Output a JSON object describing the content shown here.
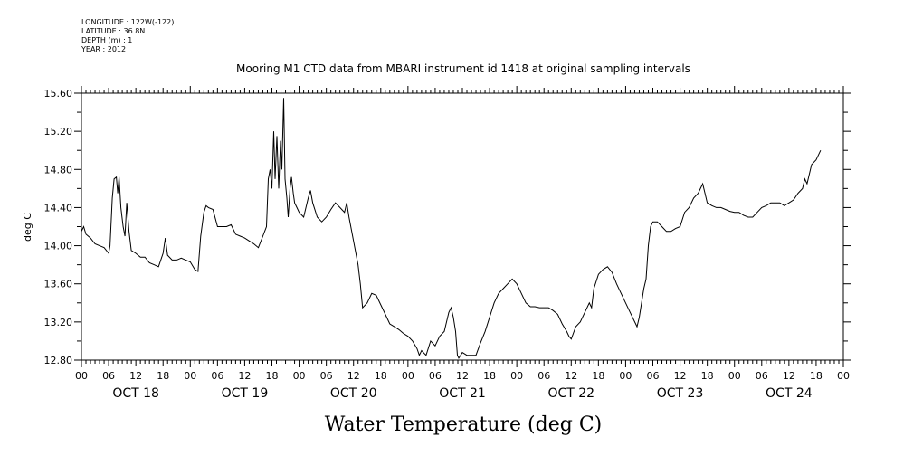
{
  "metadata": [
    "LONGITUDE : 122W(-122)",
    "LATITUDE : 36.8N",
    "DEPTH (m) : 1",
    "YEAR : 2012"
  ],
  "chart_data": {
    "type": "line",
    "title": "Mooring M1 CTD data from MBARI instrument id 1418 at original sampling intervals",
    "xlabel": "Water Temperature (deg C)",
    "ylabel": "deg C",
    "ylim": [
      12.8,
      15.6
    ],
    "yticks": [
      "12.80",
      "13.20",
      "13.60",
      "14.00",
      "14.40",
      "14.80",
      "15.20",
      "15.60"
    ],
    "xlim_hours": [
      0,
      168
    ],
    "x_unit": "hours since Oct 18 2012 00:00",
    "hour_tick_labels": [
      "00",
      "06",
      "12",
      "18",
      "00",
      "06",
      "12",
      "18",
      "00",
      "06",
      "12",
      "18",
      "00",
      "06",
      "12",
      "18",
      "00",
      "06",
      "12",
      "18",
      "00",
      "06",
      "12",
      "18",
      "00",
      "06",
      "12",
      "18",
      "00"
    ],
    "day_labels": [
      "OCT 18",
      "OCT 19",
      "OCT 20",
      "OCT 21",
      "OCT 22",
      "OCT 23",
      "OCT 24"
    ],
    "series": [
      {
        "points": [
          [
            0,
            14.15
          ],
          [
            0.5,
            14.2
          ],
          [
            1,
            14.12
          ],
          [
            2,
            14.08
          ],
          [
            3,
            14.02
          ],
          [
            4,
            14.0
          ],
          [
            5,
            13.98
          ],
          [
            6,
            13.92
          ],
          [
            6.3,
            14.0
          ],
          [
            6.8,
            14.5
          ],
          [
            7.2,
            14.7
          ],
          [
            7.7,
            14.72
          ],
          [
            8,
            14.55
          ],
          [
            8.3,
            14.72
          ],
          [
            8.7,
            14.4
          ],
          [
            9.2,
            14.2
          ],
          [
            9.6,
            14.1
          ],
          [
            10,
            14.45
          ],
          [
            10.5,
            14.15
          ],
          [
            11,
            13.95
          ],
          [
            12,
            13.92
          ],
          [
            13,
            13.88
          ],
          [
            14,
            13.88
          ],
          [
            15,
            13.82
          ],
          [
            16,
            13.8
          ],
          [
            17,
            13.78
          ],
          [
            18,
            13.92
          ],
          [
            18.5,
            14.08
          ],
          [
            19,
            13.9
          ],
          [
            20,
            13.85
          ],
          [
            21,
            13.85
          ],
          [
            22,
            13.87
          ],
          [
            23,
            13.85
          ],
          [
            24,
            13.83
          ],
          [
            25,
            13.75
          ],
          [
            25.7,
            13.73
          ],
          [
            26.3,
            14.1
          ],
          [
            27,
            14.35
          ],
          [
            27.5,
            14.42
          ],
          [
            28,
            14.4
          ],
          [
            29,
            14.38
          ],
          [
            30,
            14.2
          ],
          [
            31,
            14.2
          ],
          [
            32,
            14.2
          ],
          [
            33,
            14.22
          ],
          [
            34,
            14.12
          ],
          [
            35,
            14.1
          ],
          [
            36,
            14.08
          ],
          [
            37,
            14.05
          ],
          [
            38,
            14.02
          ],
          [
            39,
            13.98
          ],
          [
            40,
            14.1
          ],
          [
            40.8,
            14.2
          ],
          [
            41.2,
            14.7
          ],
          [
            41.6,
            14.8
          ],
          [
            42,
            14.6
          ],
          [
            42.4,
            15.2
          ],
          [
            42.7,
            14.7
          ],
          [
            43.1,
            15.15
          ],
          [
            43.5,
            14.6
          ],
          [
            43.9,
            15.1
          ],
          [
            44.2,
            14.8
          ],
          [
            44.6,
            15.55
          ],
          [
            44.9,
            14.7
          ],
          [
            45.3,
            14.5
          ],
          [
            45.6,
            14.3
          ],
          [
            46,
            14.6
          ],
          [
            46.3,
            14.72
          ],
          [
            46.7,
            14.55
          ],
          [
            47,
            14.45
          ],
          [
            47.5,
            14.4
          ],
          [
            48,
            14.35
          ],
          [
            49,
            14.3
          ],
          [
            50,
            14.5
          ],
          [
            50.5,
            14.58
          ],
          [
            51,
            14.45
          ],
          [
            52,
            14.3
          ],
          [
            53,
            14.25
          ],
          [
            54,
            14.3
          ],
          [
            55,
            14.38
          ],
          [
            56,
            14.45
          ],
          [
            57,
            14.4
          ],
          [
            58,
            14.35
          ],
          [
            58.5,
            14.45
          ],
          [
            59,
            14.3
          ],
          [
            60,
            14.05
          ],
          [
            61,
            13.8
          ],
          [
            61.5,
            13.6
          ],
          [
            62,
            13.35
          ],
          [
            63,
            13.4
          ],
          [
            64,
            13.5
          ],
          [
            65,
            13.48
          ],
          [
            66,
            13.38
          ],
          [
            67,
            13.28
          ],
          [
            68,
            13.18
          ],
          [
            69,
            13.15
          ],
          [
            70,
            13.12
          ],
          [
            71,
            13.08
          ],
          [
            72,
            13.05
          ],
          [
            73,
            13.0
          ],
          [
            74,
            12.92
          ],
          [
            74.5,
            12.85
          ],
          [
            75,
            12.9
          ],
          [
            76,
            12.85
          ],
          [
            77,
            13.0
          ],
          [
            78,
            12.95
          ],
          [
            79,
            13.05
          ],
          [
            80,
            13.1
          ],
          [
            81,
            13.3
          ],
          [
            81.5,
            13.35
          ],
          [
            82,
            13.25
          ],
          [
            82.5,
            13.1
          ],
          [
            82.9,
            12.85
          ],
          [
            83.2,
            12.82
          ],
          [
            84,
            12.88
          ],
          [
            85,
            12.85
          ],
          [
            86,
            12.85
          ],
          [
            87,
            12.85
          ],
          [
            88,
            12.98
          ],
          [
            89,
            13.1
          ],
          [
            90,
            13.25
          ],
          [
            91,
            13.4
          ],
          [
            92,
            13.5
          ],
          [
            93,
            13.55
          ],
          [
            94,
            13.6
          ],
          [
            95,
            13.65
          ],
          [
            96,
            13.6
          ],
          [
            97,
            13.5
          ],
          [
            98,
            13.4
          ],
          [
            99,
            13.36
          ],
          [
            100,
            13.36
          ],
          [
            101,
            13.35
          ],
          [
            102,
            13.35
          ],
          [
            103,
            13.35
          ],
          [
            104,
            13.32
          ],
          [
            105,
            13.28
          ],
          [
            106,
            13.18
          ],
          [
            107,
            13.1
          ],
          [
            107.5,
            13.05
          ],
          [
            108,
            13.02
          ],
          [
            109,
            13.15
          ],
          [
            110,
            13.2
          ],
          [
            111,
            13.3
          ],
          [
            112,
            13.4
          ],
          [
            112.5,
            13.35
          ],
          [
            113,
            13.55
          ],
          [
            114,
            13.7
          ],
          [
            115,
            13.75
          ],
          [
            116,
            13.78
          ],
          [
            117,
            13.72
          ],
          [
            118,
            13.6
          ],
          [
            119,
            13.5
          ],
          [
            120,
            13.4
          ],
          [
            121,
            13.3
          ],
          [
            122,
            13.2
          ],
          [
            122.5,
            13.15
          ],
          [
            123,
            13.25
          ],
          [
            124,
            13.55
          ],
          [
            124.5,
            13.65
          ],
          [
            125,
            14.0
          ],
          [
            125.5,
            14.2
          ],
          [
            126,
            14.25
          ],
          [
            127,
            14.25
          ],
          [
            128,
            14.2
          ],
          [
            129,
            14.15
          ],
          [
            130,
            14.15
          ],
          [
            131,
            14.18
          ],
          [
            132,
            14.2
          ],
          [
            133,
            14.35
          ],
          [
            134,
            14.4
          ],
          [
            135,
            14.5
          ],
          [
            136,
            14.55
          ],
          [
            136.5,
            14.6
          ],
          [
            137,
            14.65
          ],
          [
            137.5,
            14.55
          ],
          [
            138,
            14.45
          ],
          [
            139,
            14.42
          ],
          [
            140,
            14.4
          ],
          [
            141,
            14.4
          ],
          [
            142,
            14.38
          ],
          [
            143,
            14.36
          ],
          [
            144,
            14.35
          ],
          [
            145,
            14.35
          ],
          [
            146,
            14.32
          ],
          [
            147,
            14.3
          ],
          [
            148,
            14.3
          ],
          [
            149,
            14.35
          ],
          [
            150,
            14.4
          ],
          [
            151,
            14.42
          ],
          [
            152,
            14.45
          ],
          [
            153,
            14.45
          ],
          [
            154,
            14.45
          ],
          [
            155,
            14.42
          ],
          [
            156,
            14.45
          ],
          [
            157,
            14.48
          ],
          [
            158,
            14.55
          ],
          [
            159,
            14.6
          ],
          [
            159.5,
            14.7
          ],
          [
            160,
            14.65
          ],
          [
            161,
            14.85
          ],
          [
            162,
            14.9
          ],
          [
            163,
            15.0
          ]
        ]
      }
    ]
  }
}
